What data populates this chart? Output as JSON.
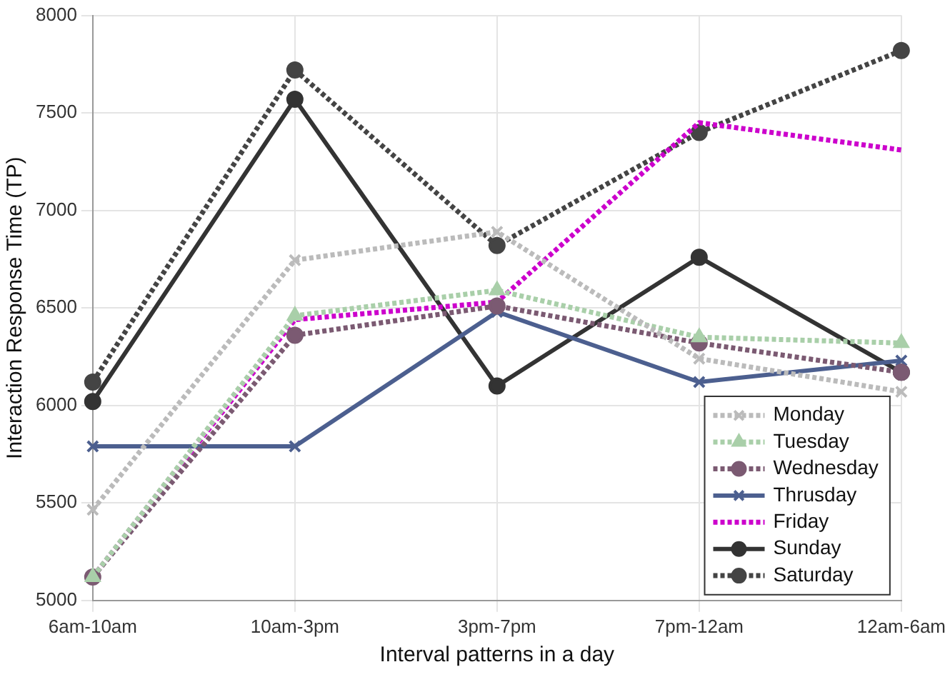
{
  "chart_data": {
    "type": "line",
    "xlabel": "Interval patterns in a day",
    "ylabel": "Interaction Response Time (TP)",
    "categories": [
      "6am-10am",
      "10am-3pm",
      "3pm-7pm",
      "7pm-12am",
      "12am-6am"
    ],
    "ylim": [
      5000,
      8000
    ],
    "yticks": [
      5000,
      5500,
      6000,
      6500,
      7000,
      7500,
      8000
    ],
    "grid": true,
    "legend": "bottom right",
    "series": [
      {
        "name": "Monday",
        "color": "#bbbbbb",
        "values": [
          5465,
          6745,
          6890,
          6240,
          6070
        ],
        "marker": "cross",
        "line_style": "dotted"
      },
      {
        "name": "Tuesday",
        "color": "#a9cfa9",
        "values": [
          5120,
          6460,
          6590,
          6350,
          6320
        ],
        "marker": "triangle",
        "line_style": "dotted"
      },
      {
        "name": "Wednesday",
        "color": "#7b5a72",
        "values": [
          5120,
          6360,
          6510,
          6320,
          6170
        ],
        "marker": "circle",
        "line_style": "dotted"
      },
      {
        "name": "Thrusday",
        "color": "#4c5f8f",
        "values": [
          5790,
          5790,
          6480,
          6120,
          6230
        ],
        "marker": "cross",
        "line_style": "solid"
      },
      {
        "name": "Friday",
        "color": "#cc00cc",
        "values": [
          5120,
          6440,
          6530,
          7450,
          7310
        ],
        "marker": "none",
        "line_style": "dotted"
      },
      {
        "name": "Sunday",
        "color": "#333333",
        "values": [
          6020,
          7570,
          6100,
          6760,
          6170
        ],
        "marker": "circle",
        "line_style": "solid"
      },
      {
        "name": "Saturday",
        "color": "#444444",
        "values": [
          6120,
          7720,
          6820,
          7400,
          7820
        ],
        "marker": "circle",
        "line_style": "dotted"
      }
    ]
  }
}
